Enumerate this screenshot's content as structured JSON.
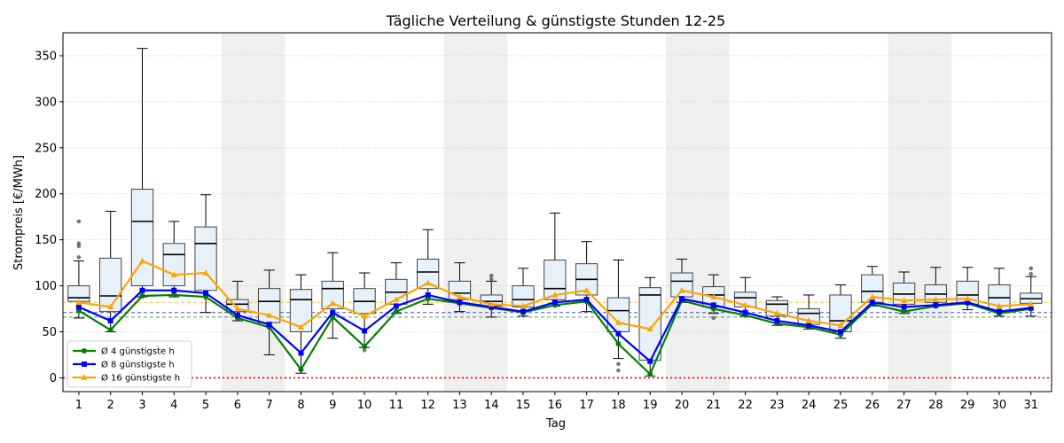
{
  "chart_data": {
    "type": "box",
    "title": "Tägliche Verteilung & günstigste Stunden 12-25",
    "xlabel": "Tag",
    "ylabel": "Strompreis [€/MWh]",
    "ylim": [
      -15,
      375
    ],
    "yticks": [
      0,
      50,
      100,
      150,
      200,
      250,
      300,
      350
    ],
    "grid": "y-dotted",
    "legend_position": "lower-left",
    "weekend_days": [
      6,
      7,
      13,
      14,
      20,
      21,
      27,
      28
    ],
    "categories": [
      "1",
      "2",
      "3",
      "4",
      "5",
      "6",
      "7",
      "8",
      "9",
      "10",
      "11",
      "12",
      "13",
      "14",
      "15",
      "16",
      "17",
      "18",
      "19",
      "20",
      "21",
      "22",
      "23",
      "24",
      "25",
      "26",
      "27",
      "28",
      "29",
      "30",
      "31"
    ],
    "boxes": [
      {
        "day": 1,
        "whislo": 65,
        "q1": 83,
        "med": 87,
        "q3": 100,
        "whishi": 127,
        "fliers": [
          131,
          143,
          146,
          170
        ]
      },
      {
        "day": 2,
        "whislo": 50,
        "q1": 72,
        "med": 89,
        "q3": 130,
        "whishi": 181,
        "fliers": []
      },
      {
        "day": 3,
        "whislo": 88,
        "q1": 100,
        "med": 170,
        "q3": 205,
        "whishi": 358,
        "fliers": []
      },
      {
        "day": 4,
        "whislo": 88,
        "q1": 100,
        "med": 134,
        "q3": 146,
        "whishi": 170,
        "fliers": []
      },
      {
        "day": 5,
        "whislo": 71,
        "q1": 95,
        "med": 146,
        "q3": 164,
        "whishi": 199,
        "fliers": []
      },
      {
        "day": 6,
        "whislo": 62,
        "q1": 72,
        "med": 80,
        "q3": 85,
        "whishi": 105,
        "fliers": []
      },
      {
        "day": 7,
        "whislo": 25,
        "q1": 60,
        "med": 83,
        "q3": 97,
        "whishi": 117,
        "fliers": []
      },
      {
        "day": 8,
        "whislo": 5,
        "q1": 50,
        "med": 85,
        "q3": 96,
        "whishi": 112,
        "fliers": []
      },
      {
        "day": 9,
        "whislo": 43,
        "q1": 75,
        "med": 97,
        "q3": 105,
        "whishi": 136,
        "fliers": []
      },
      {
        "day": 10,
        "whislo": 33,
        "q1": 70,
        "med": 83,
        "q3": 97,
        "whishi": 114,
        "fliers": [
          30
        ]
      },
      {
        "day": 11,
        "whislo": 70,
        "q1": 80,
        "med": 93,
        "q3": 107,
        "whishi": 125,
        "fliers": []
      },
      {
        "day": 12,
        "whislo": 80,
        "q1": 97,
        "med": 115,
        "q3": 129,
        "whishi": 161,
        "fliers": []
      },
      {
        "day": 13,
        "whislo": 72,
        "q1": 85,
        "med": 92,
        "q3": 105,
        "whishi": 125,
        "fliers": []
      },
      {
        "day": 14,
        "whislo": 66,
        "q1": 78,
        "med": 83,
        "q3": 90,
        "whishi": 105,
        "fliers": [
          107,
          111
        ]
      },
      {
        "day": 15,
        "whislo": 67,
        "q1": 77,
        "med": 85,
        "q3": 100,
        "whishi": 119,
        "fliers": []
      },
      {
        "day": 16,
        "whislo": 78,
        "q1": 85,
        "med": 97,
        "q3": 128,
        "whishi": 179,
        "fliers": []
      },
      {
        "day": 17,
        "whislo": 72,
        "q1": 90,
        "med": 107,
        "q3": 124,
        "whishi": 148,
        "fliers": []
      },
      {
        "day": 18,
        "whislo": 21,
        "q1": 50,
        "med": 73,
        "q3": 87,
        "whishi": 128,
        "fliers": [
          8,
          15
        ]
      },
      {
        "day": 19,
        "whislo": 2,
        "q1": 19,
        "med": 90,
        "q3": 98,
        "whishi": 109,
        "fliers": []
      },
      {
        "day": 20,
        "whislo": 82,
        "q1": 88,
        "med": 105,
        "q3": 114,
        "whishi": 129,
        "fliers": []
      },
      {
        "day": 21,
        "whislo": 70,
        "q1": 77,
        "med": 90,
        "q3": 99,
        "whishi": 112,
        "fliers": [
          65
        ]
      },
      {
        "day": 22,
        "whislo": 67,
        "q1": 77,
        "med": 87,
        "q3": 93,
        "whishi": 109,
        "fliers": []
      },
      {
        "day": 23,
        "whislo": 57,
        "q1": 67,
        "med": 80,
        "q3": 84,
        "whishi": 88,
        "fliers": []
      },
      {
        "day": 24,
        "whislo": 53,
        "q1": 58,
        "med": 70,
        "q3": 75,
        "whishi": 90,
        "fliers": []
      },
      {
        "day": 25,
        "whislo": 43,
        "q1": 50,
        "med": 62,
        "q3": 90,
        "whishi": 101,
        "fliers": []
      },
      {
        "day": 26,
        "whislo": 78,
        "q1": 82,
        "med": 94,
        "q3": 112,
        "whishi": 121,
        "fliers": []
      },
      {
        "day": 27,
        "whislo": 70,
        "q1": 80,
        "med": 91,
        "q3": 103,
        "whishi": 115,
        "fliers": []
      },
      {
        "day": 28,
        "whislo": 78,
        "q1": 82,
        "med": 91,
        "q3": 101,
        "whishi": 120,
        "fliers": []
      },
      {
        "day": 29,
        "whislo": 74,
        "q1": 80,
        "med": 90,
        "q3": 105,
        "whishi": 120,
        "fliers": []
      },
      {
        "day": 30,
        "whislo": 67,
        "q1": 73,
        "med": 87,
        "q3": 101,
        "whishi": 119,
        "fliers": []
      },
      {
        "day": 31,
        "whislo": 67,
        "q1": 81,
        "med": 86,
        "q3": 92,
        "whishi": 110,
        "fliers": [
          113,
          119
        ]
      }
    ],
    "series": [
      {
        "name": "Ø 4 günstigste h",
        "color": "#008000",
        "marker": "circle",
        "mean": 66,
        "values": [
          73,
          52,
          89,
          90,
          88,
          65,
          55,
          9,
          66,
          34,
          72,
          86,
          81,
          76,
          71,
          79,
          83,
          37,
          4,
          84,
          75,
          68,
          59,
          55,
          47,
          80,
          72,
          78,
          81,
          70,
          75
        ]
      },
      {
        "name": "Ø 8 günstigste h",
        "color": "#0000ff",
        "marker": "square",
        "mean": 71,
        "values": [
          77,
          62,
          95,
          95,
          92,
          68,
          58,
          27,
          71,
          51,
          78,
          90,
          82,
          77,
          72,
          82,
          85,
          48,
          18,
          86,
          79,
          71,
          62,
          57,
          50,
          82,
          77,
          79,
          82,
          72,
          76
        ]
      },
      {
        "name": "Ø 16 günstigste h",
        "color": "#ffa500",
        "marker": "triangle",
        "mean": 82,
        "values": [
          82,
          77,
          127,
          112,
          114,
          75,
          68,
          55,
          81,
          67,
          85,
          103,
          88,
          80,
          78,
          90,
          95,
          60,
          53,
          95,
          88,
          79,
          70,
          62,
          57,
          88,
          84,
          85,
          86,
          78,
          80
        ]
      }
    ],
    "zero_line": {
      "value": 0,
      "color": "#ff0000"
    }
  }
}
